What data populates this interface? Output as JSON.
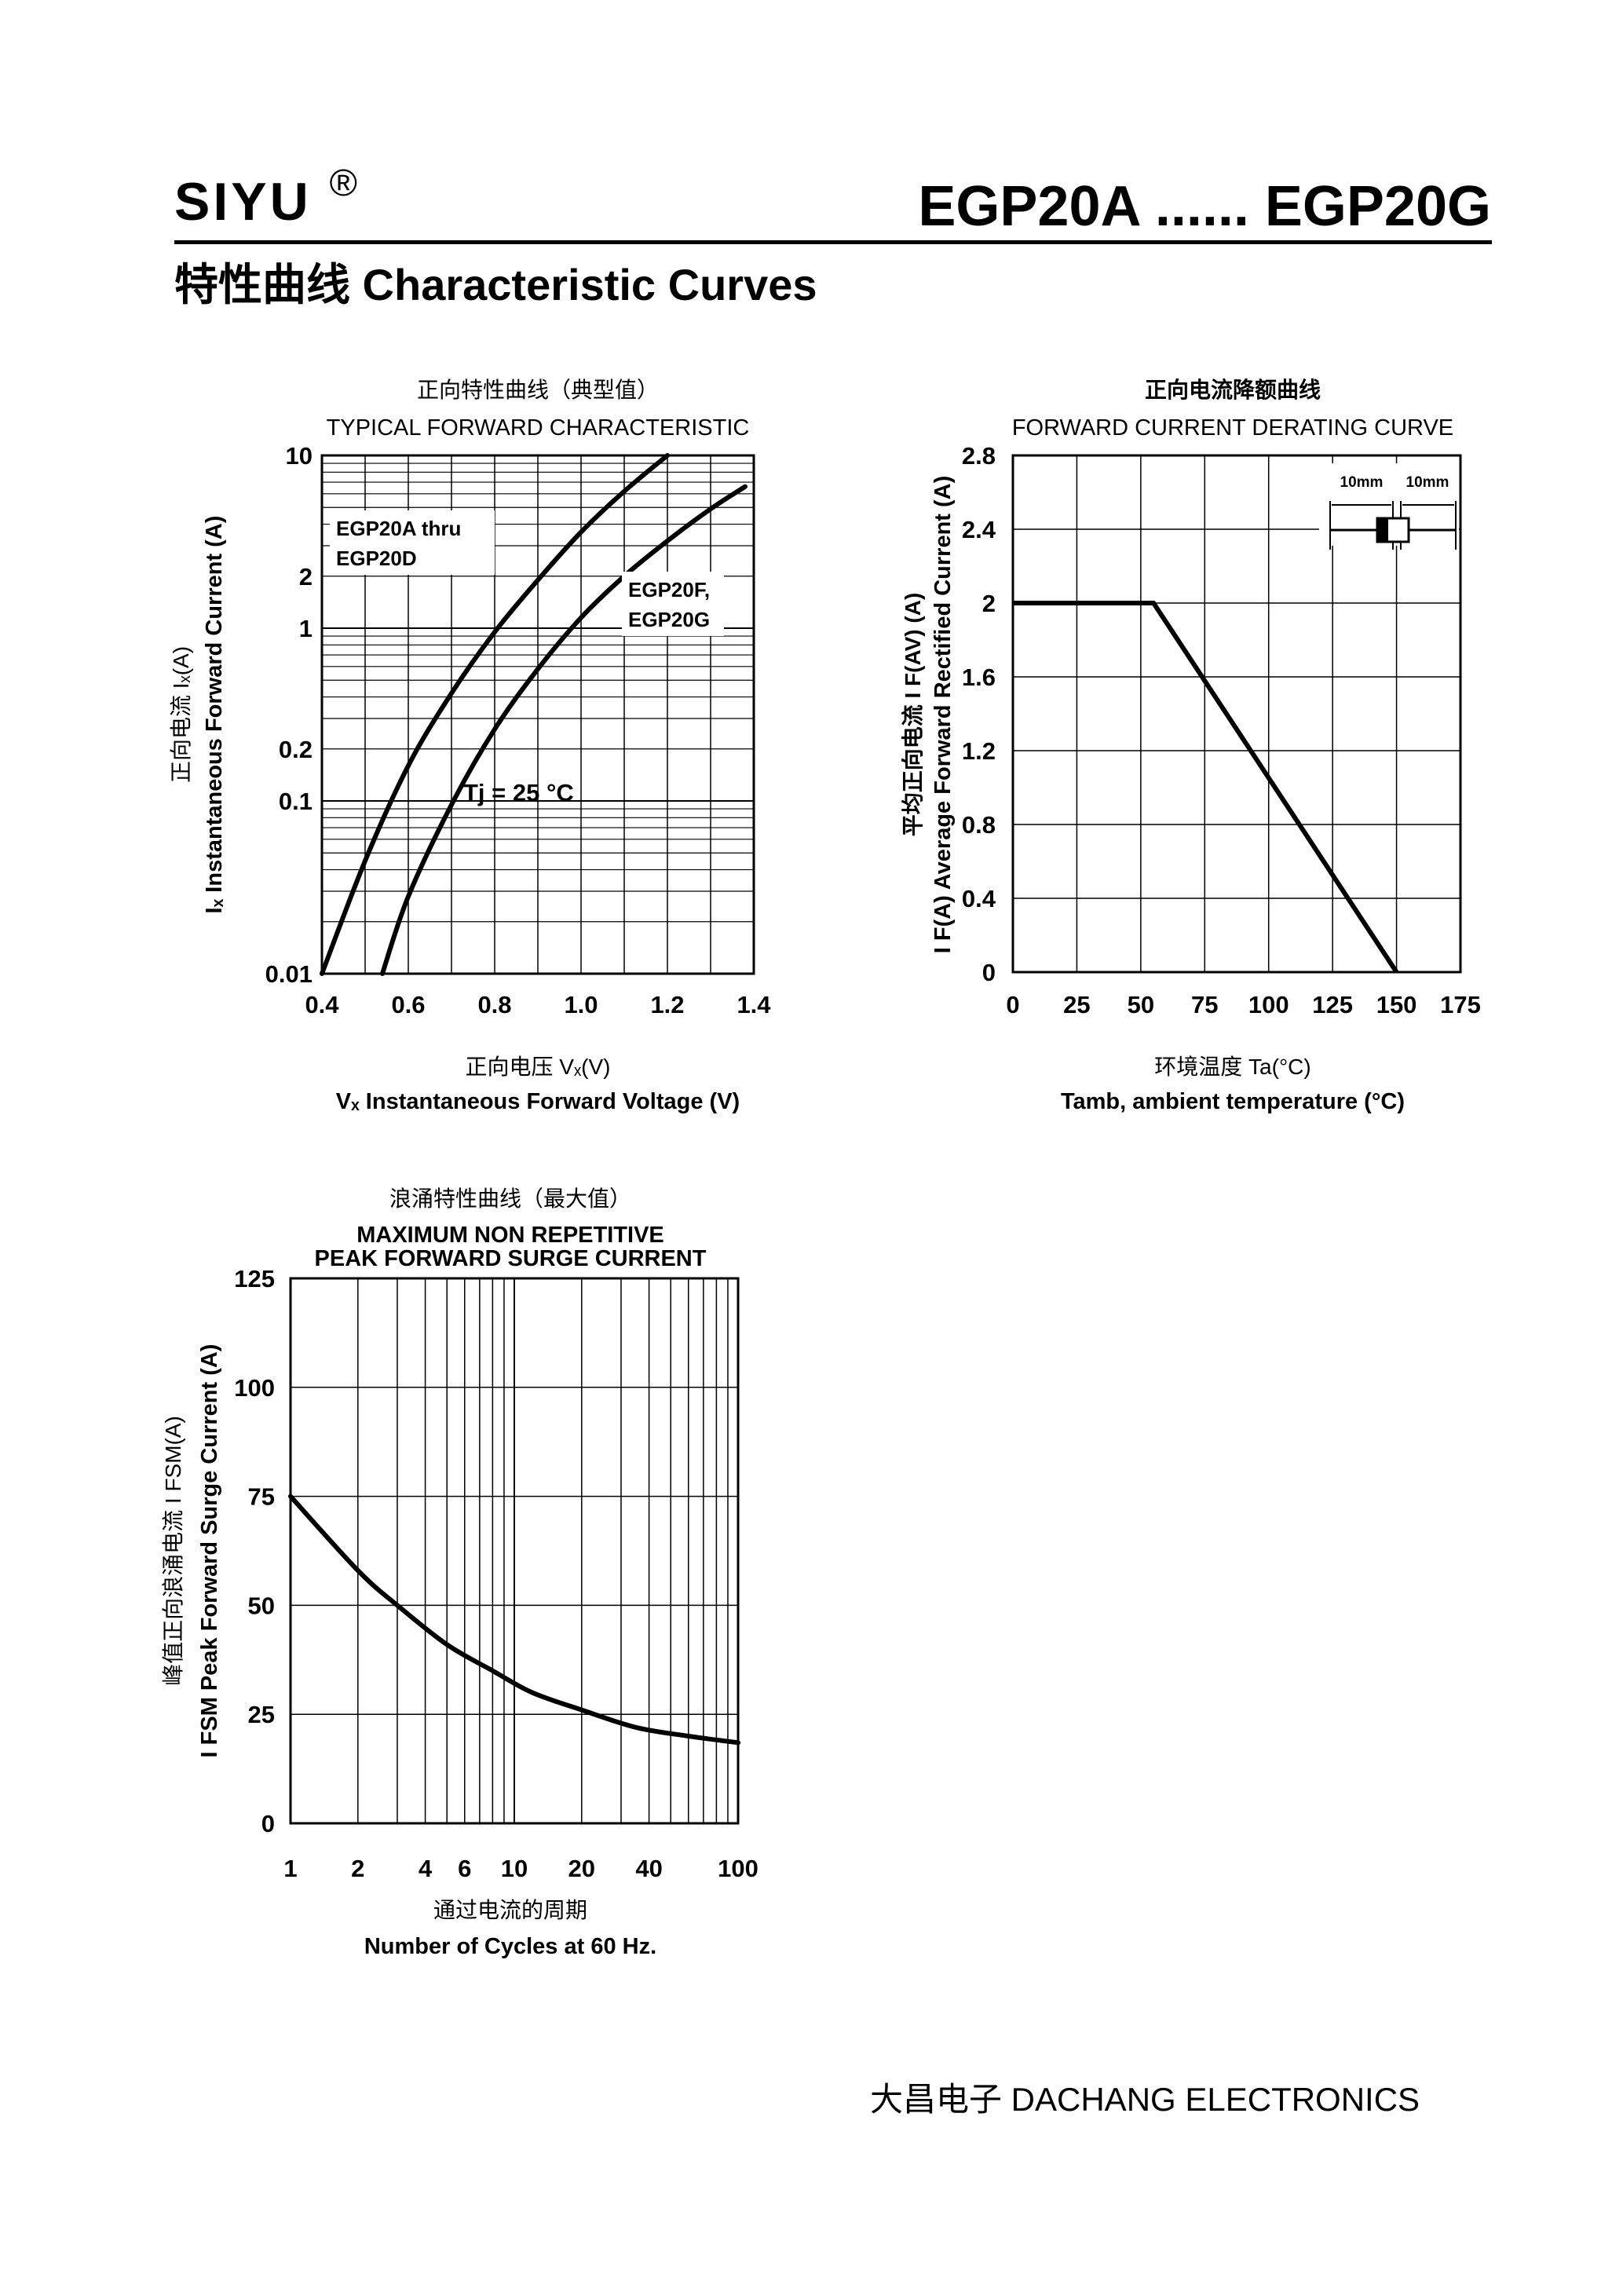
{
  "header": {
    "brand": "SIYU",
    "brand_mark": "®",
    "part_range": "EGP20A ...... EGP20G",
    "section_title": "特性曲线   Characteristic Curves"
  },
  "footer": {
    "company": "大昌电子   DACHANG ELECTRONICS"
  },
  "chart_data": [
    {
      "id": "forward",
      "type": "line",
      "title_cn": "正向特性曲线（典型值）",
      "title": "TYPICAL FORWARD CHARACTERISTIC",
      "xlabel_cn": "正向电压    Vₓ(V)",
      "xlabel": "Vₓ Instantaneous Forward Voltage (V)",
      "ylabel_cn": "正向电流    Iₓ(A)",
      "ylabel": "Iₓ Instantaneous Forward Current (A)",
      "xlim": [
        0.4,
        1.4
      ],
      "ylim": [
        0.01,
        10
      ],
      "yscale": "log",
      "xticks": [
        0.4,
        0.6,
        0.8,
        1.0,
        1.2,
        1.4
      ],
      "xtick_labels": [
        "0.4",
        "0.6",
        "0.8",
        "1.0",
        "1.2",
        "1.4"
      ],
      "yticks": [
        0.01,
        0.1,
        0.2,
        1,
        2,
        10
      ],
      "ytick_labels": [
        "0.01",
        "0.1",
        "0.2",
        "1",
        "2",
        "10"
      ],
      "grid": true,
      "annotation": "Tj = 25 °C",
      "series": [
        {
          "name": "EGP20A thru EGP20D",
          "label_lines": [
            "EGP20A thru",
            "EGP20D"
          ],
          "x": [
            0.4,
            0.5,
            0.6,
            0.7,
            0.8,
            0.9,
            1.0,
            1.1,
            1.2
          ],
          "y": [
            0.01,
            0.045,
            0.16,
            0.42,
            0.95,
            1.9,
            3.6,
            6.2,
            10
          ]
        },
        {
          "name": "EGP20F, EGP20G",
          "label_lines": [
            "EGP20F,",
            "EGP20G"
          ],
          "x": [
            0.54,
            0.6,
            0.7,
            0.8,
            0.9,
            1.0,
            1.1,
            1.2,
            1.3,
            1.38
          ],
          "y": [
            0.01,
            0.028,
            0.095,
            0.26,
            0.58,
            1.15,
            2.0,
            3.2,
            4.9,
            6.6
          ]
        }
      ]
    },
    {
      "id": "derating",
      "type": "line",
      "title_cn": "正向电流降额曲线",
      "title": "FORWARD CURRENT DERATING CURVE",
      "xlabel_cn": "环境温度   Ta(°C)",
      "xlabel": "Tamb, ambient temperature (°C)",
      "ylabel_cn": "平均正向电流    I F(AV)  (A)",
      "ylabel": "I F(A)  Average Forward Rectified Current (A)",
      "xlim": [
        0,
        175
      ],
      "ylim": [
        0,
        2.8
      ],
      "xticks": [
        0,
        25,
        50,
        75,
        100,
        125,
        150,
        175
      ],
      "xtick_labels": [
        "0",
        "25",
        "50",
        "75",
        "100",
        "125",
        "150",
        "175"
      ],
      "yticks": [
        0,
        0.4,
        0.8,
        1.2,
        1.6,
        2,
        2.4,
        2.8
      ],
      "ytick_labels": [
        "0",
        "0.4",
        "0.8",
        "1.2",
        "1.6",
        "2",
        "2.4",
        "2.8"
      ],
      "grid": true,
      "inset_labels": [
        "10mm",
        "10mm"
      ],
      "series": [
        {
          "x": [
            0,
            55,
            150
          ],
          "y": [
            2.0,
            2.0,
            0
          ]
        }
      ]
    },
    {
      "id": "surge",
      "type": "line",
      "title_cn": "浪涌特性曲线（最大值）",
      "title_lines": [
        "MAXIMUM NON REPETITIVE",
        "PEAK FORWARD SURGE CURRENT"
      ],
      "xlabel_cn": "通过电流的周期",
      "xlabel": "Number  of  Cycles at 60 Hz.",
      "ylabel_cn": "峰值正向浪涌电流   I FSM(A)",
      "ylabel": "I FSM  Peak Forward Surge Current (A)",
      "xlim": [
        1,
        100
      ],
      "xscale": "log",
      "ylim": [
        0,
        125
      ],
      "xticks": [
        1,
        2,
        4,
        6,
        10,
        20,
        40,
        100
      ],
      "xtick_labels": [
        "1",
        "2",
        "4",
        "6",
        "10",
        "20",
        "40",
        "100"
      ],
      "yticks": [
        0,
        25,
        50,
        75,
        100,
        125
      ],
      "ytick_labels": [
        "0",
        "25",
        "50",
        "75",
        "100",
        "125"
      ],
      "grid": true,
      "series": [
        {
          "x": [
            1,
            2,
            3,
            5,
            8,
            12,
            20,
            35,
            60,
            100
          ],
          "y": [
            75,
            58,
            50,
            41,
            35,
            30,
            26,
            22,
            20,
            18.5
          ]
        }
      ]
    }
  ]
}
